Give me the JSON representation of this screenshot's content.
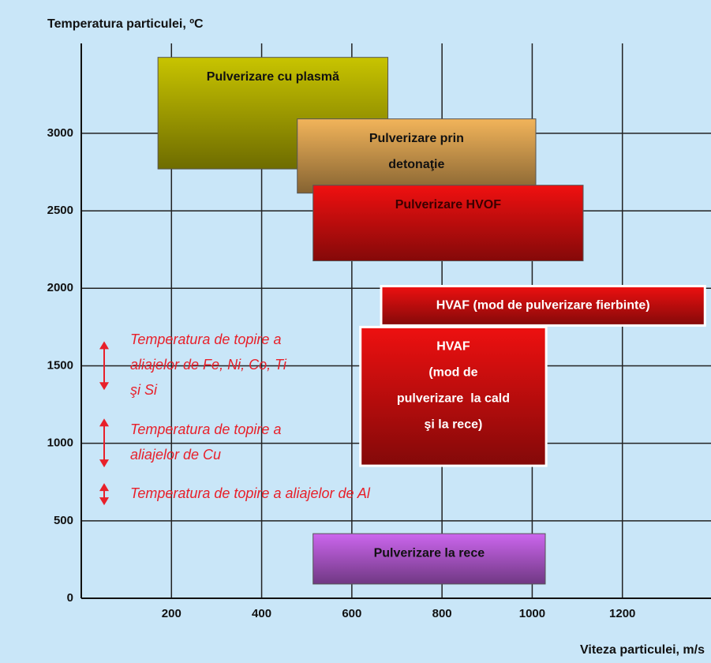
{
  "chart_data": {
    "type": "range",
    "y_label": "Temperatura particulei, ºC",
    "x_label": "Viteza particulei, m/s",
    "xlim": [
      0,
      1400
    ],
    "xticks": [
      200,
      400,
      600,
      800,
      1000,
      1200
    ],
    "ylim": [
      0,
      3580
    ],
    "yticks": [
      0,
      500,
      1000,
      1500,
      2000,
      2500,
      3000
    ],
    "grid": true,
    "series": [
      {
        "label": [
          "Pulverizare cu plasmă"
        ],
        "color": "#c8c400",
        "text_color": "#111111",
        "x": [
          170,
          680
        ],
        "y": [
          2770,
          3490
        ]
      },
      {
        "label": [
          "Pulverizare prin",
          "detonaţie"
        ],
        "color": "#f2b45a",
        "text_color": "#111111",
        "x": [
          479,
          1008
        ],
        "y": [
          2614,
          3093
        ]
      },
      {
        "label": [
          "Pulverizare HVOF"
        ],
        "color": "#f01010",
        "text_color": "#3a0000",
        "x": [
          514,
          1113
        ],
        "y": [
          2177,
          2665
        ]
      },
      {
        "label": [
          "HVAF (mod de pulverizare fierbinte)"
        ],
        "color": "#ee1010",
        "text_color": "#ffffff",
        "outline": "#ffffff",
        "x": [
          665,
          1383
        ],
        "y": [
          1760,
          2014
        ]
      },
      {
        "label": [
          "HVAF",
          "(mod de",
          "pulverizare  la cald",
          "şi la rece)"
        ],
        "color": "#ee1010",
        "text_color": "#ffffff",
        "outline": "#ffffff",
        "x": [
          619,
          1031
        ],
        "y": [
          855,
          1750
        ]
      },
      {
        "label": [
          "Pulverizare la rece"
        ],
        "color": "#cc66ee",
        "text_color": "#111111",
        "x": [
          514,
          1029
        ],
        "y": [
          92,
          417
        ]
      }
    ],
    "annotations": [
      {
        "text": [
          "Temperatura de topire a",
          "aliajelor de Fe, Ni, Co, Ti",
          "şi Si"
        ],
        "range": [
          1343,
          1658
        ],
        "color": "#e8202a"
      },
      {
        "text": [
          "Temperatura de topire a",
          "aliajelor de Cu"
        ],
        "range": [
          845,
          1160
        ],
        "color": "#e8202a"
      },
      {
        "text": [
          "Temperatura de topire a aliajelor de Al"
        ],
        "range": [
          600,
          743
        ],
        "color": "#e8202a"
      }
    ]
  }
}
